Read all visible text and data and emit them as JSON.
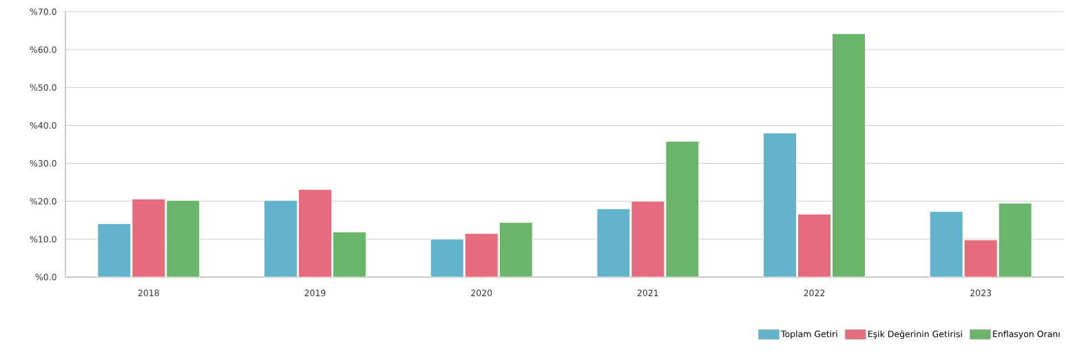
{
  "chart_data": {
    "type": "bar",
    "categories": [
      "2018",
      "2019",
      "2020",
      "2021",
      "2022",
      "2023"
    ],
    "series": [
      {
        "name": "Toplam Getiri",
        "color": "#62b3cc",
        "values": [
          14.1,
          20.2,
          10.0,
          18.0,
          38.0,
          17.3
        ]
      },
      {
        "name": "Eşik Değerinin Getirisi",
        "color": "#e66b7c",
        "values": [
          20.6,
          23.1,
          11.5,
          20.0,
          16.6,
          9.8
        ]
      },
      {
        "name": "Enflasyon Oranı",
        "color": "#6bb56b",
        "values": [
          20.2,
          11.9,
          14.4,
          35.8,
          64.2,
          19.5
        ]
      }
    ],
    "ylim": [
      0,
      70
    ],
    "yticks": [
      {
        "value": 0,
        "label": "%0.0"
      },
      {
        "value": 10,
        "label": "%10.0"
      },
      {
        "value": 20,
        "label": "%20.0"
      },
      {
        "value": 30,
        "label": "%30.0"
      },
      {
        "value": 40,
        "label": "%40.0"
      },
      {
        "value": 50,
        "label": "%50.0"
      },
      {
        "value": 60,
        "label": "%60.0"
      },
      {
        "value": 70,
        "label": "%70.0"
      }
    ],
    "grid": "y",
    "legend": "bottom right"
  }
}
